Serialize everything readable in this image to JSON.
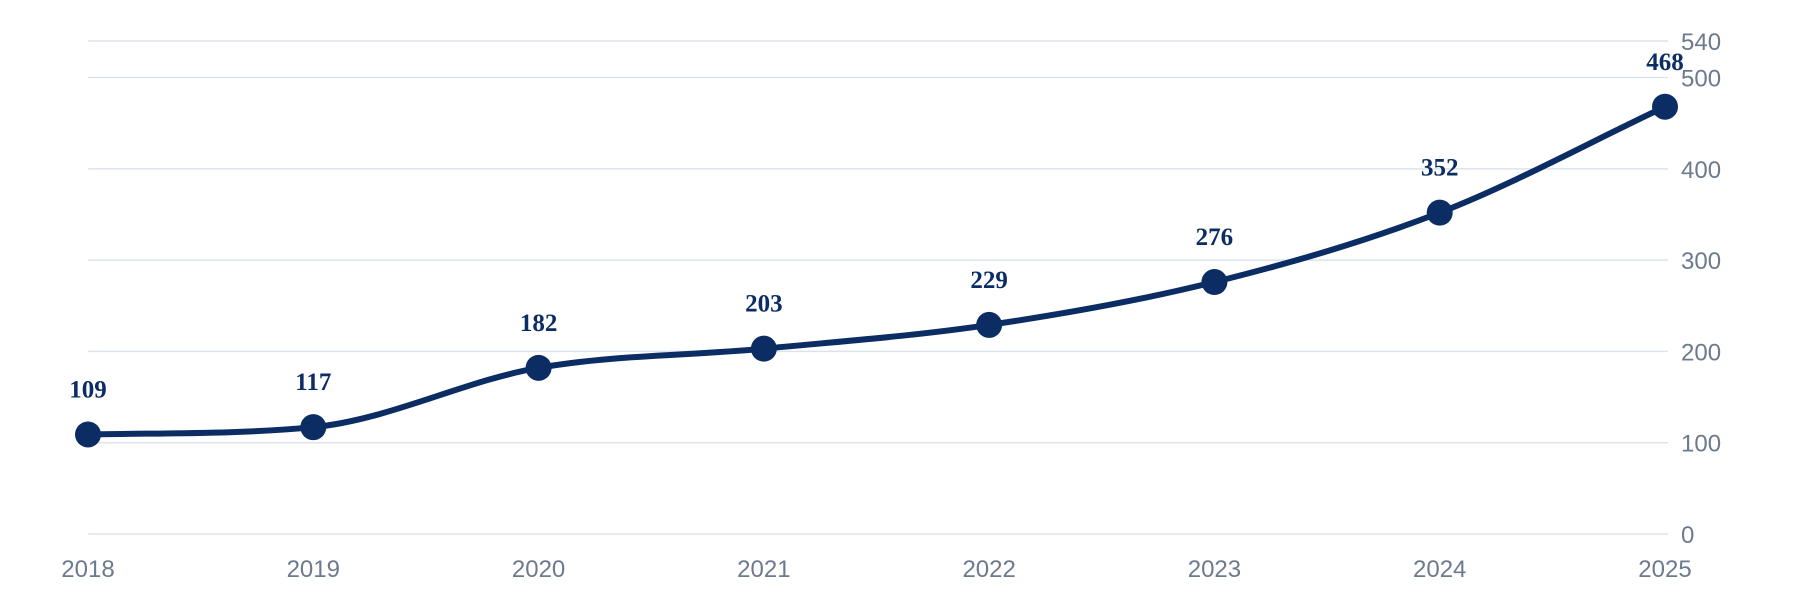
{
  "chart_data": {
    "type": "line",
    "x": [
      "2018",
      "2019",
      "2020",
      "2021",
      "2022",
      "2023",
      "2024",
      "2025"
    ],
    "series": [
      {
        "values": [
          109,
          117,
          182,
          203,
          229,
          276,
          352,
          468
        ]
      }
    ],
    "data_labels": [
      "109",
      "117",
      "182",
      "203",
      "229",
      "276",
      "352",
      "468"
    ],
    "y_ticks": [
      0,
      100,
      200,
      300,
      400,
      500,
      540
    ],
    "ylim": [
      0,
      540
    ],
    "y_axis_side": "right",
    "grid": true,
    "smooth": true,
    "colors": {
      "line": "#0b2d64",
      "grid": "#dde3ec",
      "tick_text": "#6d7a8e",
      "label_text": "#0b2d64"
    }
  }
}
